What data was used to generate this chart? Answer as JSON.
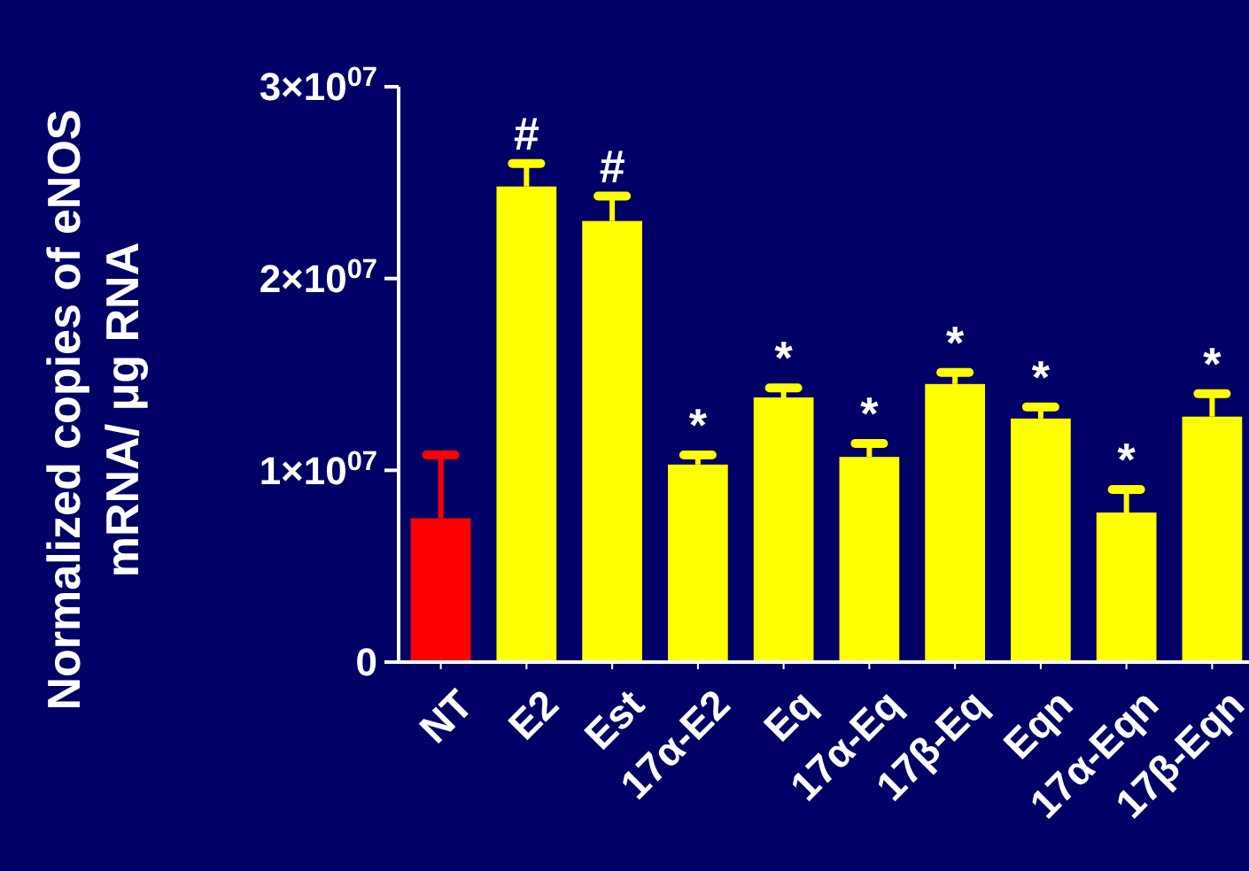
{
  "chart_data": {
    "type": "bar",
    "ylabel": "Normalized copies of eNOS\nmRNA/ μg RNA",
    "categories": [
      "NT",
      "E2",
      "Est",
      "17α-E2",
      "Eq",
      "17α-Eq",
      "17β-Eq",
      "Eqn",
      "17α-Eqn",
      "17β-Eqn"
    ],
    "values": [
      7500000,
      24800000,
      23000000,
      10300000,
      13800000,
      10700000,
      14500000,
      12700000,
      7800000,
      12800000
    ],
    "errors": [
      3300000,
      1200000,
      1300000,
      500000,
      500000,
      700000,
      600000,
      600000,
      1200000,
      1200000
    ],
    "colors": [
      "#ff0000",
      "#ffff00",
      "#ffff00",
      "#ffff00",
      "#ffff00",
      "#ffff00",
      "#ffff00",
      "#ffff00",
      "#ffff00",
      "#ffff00"
    ],
    "ylim": [
      0,
      30000000
    ],
    "yticks": [
      {
        "value": 0,
        "label": "0"
      },
      {
        "value": 10000000,
        "label": "1×10$^{07}$"
      },
      {
        "value": 20000000,
        "label": "2×10$^{07}$"
      },
      {
        "value": 30000000,
        "label": "3×10$^{07}$"
      }
    ],
    "annotations": [
      {
        "text": "#",
        "x": "E2",
        "y": 24800000
      },
      {
        "text": "#",
        "x": "Est",
        "y": 23000000
      },
      {
        "text": "*",
        "x": "17α-E2",
        "y": 10300000
      },
      {
        "text": "*",
        "x": "Eq",
        "y": 13800000
      },
      {
        "text": "*",
        "x": "17α-Eq",
        "y": 10700000
      },
      {
        "text": "*",
        "x": "17β-Eq",
        "y": 14500000
      },
      {
        "text": "*",
        "x": "Eqn",
        "y": 12700000
      },
      {
        "text": "*",
        "x": "17α-Eqn",
        "y": 7800000
      },
      {
        "text": "*",
        "x": "17β-Eqn",
        "y": 12800000
      }
    ]
  }
}
